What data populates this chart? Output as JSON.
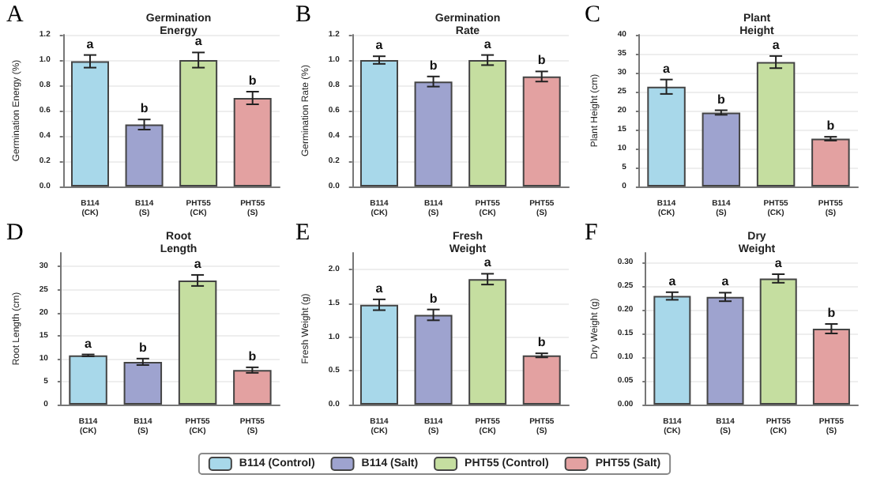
{
  "chart_data": [
    {
      "type": "bar",
      "title": "Germination\nEnergy",
      "ylabel": "Germination Energy (%)",
      "categories": [
        "B114\n(CK)",
        "B114\n(S)",
        "PHT55\n(CK)",
        "PHT55\n(S)"
      ],
      "legend": "bottom",
      "grid": "y",
      "series": [
        {
          "name": "B114 (Control)",
          "color": "#a8d8ea",
          "values": [
            0.99,
            null,
            null,
            null
          ],
          "errors": [
            0.05,
            null,
            null,
            null
          ]
        },
        {
          "name": "B114 (Salt)",
          "color": "#9ea3cf",
          "values": [
            null,
            0.49,
            null,
            null
          ],
          "errors": [
            null,
            0.04,
            null,
            null
          ]
        },
        {
          "name": "PHT55 (Control)",
          "color": "#c5dea0",
          "values": [
            null,
            null,
            1.0,
            null
          ],
          "errors": [
            null,
            null,
            0.06,
            null
          ]
        },
        {
          "name": "PHT55 (Salt)",
          "color": "#e3a1a1",
          "values": [
            null,
            null,
            null,
            0.7
          ],
          "errors": [
            null,
            null,
            null,
            0.05
          ]
        }
      ],
      "ylim": [
        0,
        1.2
      ],
      "yticks": [
        {
          "value": 0,
          "label": "0.0"
        },
        0.2,
        0.4,
        0.6,
        0.8,
        {
          "value": 1,
          "label": "1.0"
        },
        1.2
      ],
      "annotations": [
        "A",
        {
          "text": "a",
          "x": "B114\n(CK)",
          "y": 1.04
        },
        {
          "text": "b",
          "x": "B114\n(S)",
          "y": 0.53
        },
        {
          "text": "a",
          "x": "PHT55\n(CK)",
          "y": 1.06
        },
        {
          "text": "b",
          "x": "PHT55\n(S)",
          "y": 0.75
        }
      ]
    },
    {
      "type": "bar",
      "title": "Germination\nRate",
      "ylabel": "Germination Rate (%)",
      "categories": [
        "B114\n(CK)",
        "B114\n(S)",
        "PHT55\n(CK)",
        "PHT55\n(S)"
      ],
      "grid": "y",
      "series": [
        {
          "color": "#a8d8ea",
          "values": [
            1.0,
            null,
            null,
            null
          ],
          "errors": [
            0.03,
            null,
            null,
            null
          ]
        },
        {
          "color": "#9ea3cf",
          "values": [
            null,
            0.83,
            null,
            null
          ],
          "errors": [
            null,
            0.04,
            null,
            null
          ]
        },
        {
          "color": "#c5dea0",
          "values": [
            null,
            null,
            1.0,
            null
          ],
          "errors": [
            null,
            null,
            0.04,
            null
          ]
        },
        {
          "color": "#e3a1a1",
          "values": [
            null,
            null,
            null,
            0.87
          ],
          "errors": [
            null,
            null,
            null,
            0.04
          ]
        }
      ],
      "ylim": [
        0,
        1.2
      ],
      "yticks": [
        {
          "value": 0,
          "label": "0.0"
        },
        0.2,
        0.4,
        0.6,
        0.8,
        {
          "value": 1,
          "label": "1.0"
        },
        1.2
      ],
      "annotations": [
        "B",
        {
          "text": "a",
          "x": "B114\n(CK)",
          "y": 1.03
        },
        {
          "text": "b",
          "x": "B114\n(S)",
          "y": 0.87
        },
        {
          "text": "a",
          "x": "PHT55\n(CK)",
          "y": 1.04
        },
        {
          "text": "b",
          "x": "PHT55\n(S)",
          "y": 0.91
        }
      ]
    },
    {
      "type": "bar",
      "title": "Plant\nHeight",
      "ylabel": "Plant Height (cm)",
      "categories": [
        "B114\n(CK)",
        "B114\n(S)",
        "PHT55\n(CK)",
        "PHT55\n(S)"
      ],
      "grid": "y",
      "series": [
        {
          "color": "#a8d8ea",
          "values": [
            26.3,
            null,
            null,
            null
          ],
          "errors": [
            1.9,
            null,
            null,
            null
          ]
        },
        {
          "color": "#9ea3cf",
          "values": [
            null,
            19.5,
            null,
            null
          ],
          "errors": [
            null,
            0.6,
            null,
            null
          ]
        },
        {
          "color": "#c5dea0",
          "values": [
            null,
            null,
            32.8,
            null
          ],
          "errors": [
            null,
            null,
            1.6,
            null
          ]
        },
        {
          "color": "#e3a1a1",
          "values": [
            null,
            null,
            null,
            12.6
          ],
          "errors": [
            null,
            null,
            null,
            0.5
          ]
        }
      ],
      "ylim": [
        0,
        40
      ],
      "yticks": [
        0,
        5,
        10,
        15,
        20,
        25,
        30,
        35,
        40
      ],
      "annotations": [
        "C",
        {
          "text": "a",
          "x": "B114\n(CK)",
          "y": 28.2
        },
        {
          "text": "b",
          "x": "B114\n(S)",
          "y": 20.1
        },
        {
          "text": "a",
          "x": "PHT55\n(CK)",
          "y": 34.4
        },
        {
          "text": "b",
          "x": "PHT55\n(S)",
          "y": 13.1
        }
      ]
    },
    {
      "type": "bar",
      "title": "Root\nLength",
      "ylabel": "Root Length (cm)",
      "categories": [
        "B114\n(CK)",
        "B114\n(S)",
        "PHT55\n(CK)",
        "PHT55\n(S)"
      ],
      "grid": "y",
      "series": [
        {
          "color": "#a8d8ea",
          "values": [
            10.7,
            null,
            null,
            null
          ],
          "errors": [
            0.2,
            null,
            null,
            null
          ]
        },
        {
          "color": "#9ea3cf",
          "values": [
            null,
            9.3,
            null,
            null
          ],
          "errors": [
            null,
            0.7,
            null,
            null
          ]
        },
        {
          "color": "#c5dea0",
          "values": [
            null,
            null,
            27.0,
            null
          ],
          "errors": [
            null,
            null,
            1.2,
            null
          ]
        },
        {
          "color": "#e3a1a1",
          "values": [
            null,
            null,
            null,
            7.5
          ],
          "errors": [
            null,
            null,
            null,
            0.6
          ]
        }
      ],
      "ylim": [
        0,
        33
      ],
      "yticks": [
        0,
        5,
        10,
        15,
        20,
        25,
        30
      ],
      "annotations": [
        "D",
        {
          "text": "a",
          "x": "B114\n(CK)",
          "y": 10.9
        },
        {
          "text": "b",
          "x": "B114\n(S)",
          "y": 10.0
        },
        {
          "text": "a",
          "x": "PHT55\n(CK)",
          "y": 28.2
        },
        {
          "text": "b",
          "x": "PHT55\n(S)",
          "y": 8.1
        }
      ]
    },
    {
      "type": "bar",
      "title": "Fresh\nWeight",
      "ylabel": "Fresh Weight (g)",
      "categories": [
        "B114\n(CK)",
        "B114\n(S)",
        "PHT55\n(CK)",
        "PHT55\n(S)"
      ],
      "grid": "y",
      "series": [
        {
          "color": "#a8d8ea",
          "values": [
            1.48,
            null,
            null,
            null
          ],
          "errors": [
            0.08,
            null,
            null,
            null
          ]
        },
        {
          "color": "#9ea3cf",
          "values": [
            null,
            1.33,
            null,
            null
          ],
          "errors": [
            null,
            0.08,
            null,
            null
          ]
        },
        {
          "color": "#c5dea0",
          "values": [
            null,
            null,
            1.86,
            null
          ],
          "errors": [
            null,
            null,
            0.08,
            null
          ]
        },
        {
          "color": "#e3a1a1",
          "values": [
            null,
            null,
            null,
            0.73
          ],
          "errors": [
            null,
            null,
            null,
            0.03
          ]
        }
      ],
      "ylim": [
        0,
        2.25
      ],
      "yticks": [
        {
          "value": 0,
          "label": "0.0"
        },
        0.5,
        {
          "value": 1,
          "label": "1.0"
        },
        1.5,
        {
          "value": 2,
          "label": "2.0"
        }
      ],
      "annotations": [
        "E",
        {
          "text": "a",
          "x": "B114\n(CK)",
          "y": 1.56
        },
        {
          "text": "b",
          "x": "B114\n(S)",
          "y": 1.41
        },
        {
          "text": "a",
          "x": "PHT55\n(CK)",
          "y": 1.94
        },
        {
          "text": "b",
          "x": "PHT55\n(S)",
          "y": 0.76
        }
      ]
    },
    {
      "type": "bar",
      "title": "Dry\nWeight",
      "ylabel": "Dry Weight (g)",
      "categories": [
        "B114\n(CK)",
        "B114\n(S)",
        "PHT55\n(CK)",
        "PHT55\n(S)"
      ],
      "grid": "y",
      "series": [
        {
          "color": "#a8d8ea",
          "values": [
            0.229,
            null,
            null,
            null
          ],
          "errors": [
            0.008,
            null,
            null,
            null
          ]
        },
        {
          "color": "#9ea3cf",
          "values": [
            null,
            0.227,
            null,
            null
          ],
          "errors": [
            null,
            0.009,
            null,
            null
          ]
        },
        {
          "color": "#c5dea0",
          "values": [
            null,
            null,
            0.266,
            null
          ],
          "errors": [
            null,
            null,
            0.009,
            null
          ]
        },
        {
          "color": "#e3a1a1",
          "values": [
            null,
            null,
            null,
            0.16
          ],
          "errors": [
            null,
            null,
            null,
            0.01
          ]
        }
      ],
      "ylim": [
        0,
        0.32
      ],
      "yticks": [
        {
          "value": 0,
          "label": "0.00"
        },
        0.05,
        {
          "value": 0.1,
          "label": "0.10"
        },
        0.15,
        {
          "value": 0.2,
          "label": "0.20"
        },
        0.25,
        {
          "value": 0.3,
          "label": "0.30"
        }
      ],
      "annotations": [
        "F",
        {
          "text": "a",
          "x": "B114\n(CK)",
          "y": 0.237
        },
        {
          "text": "a",
          "x": "B114\n(S)",
          "y": 0.236
        },
        {
          "text": "a",
          "x": "PHT55\n(CK)",
          "y": 0.275
        },
        {
          "text": "b",
          "x": "PHT55\n(S)",
          "y": 0.17
        }
      ]
    }
  ]
}
